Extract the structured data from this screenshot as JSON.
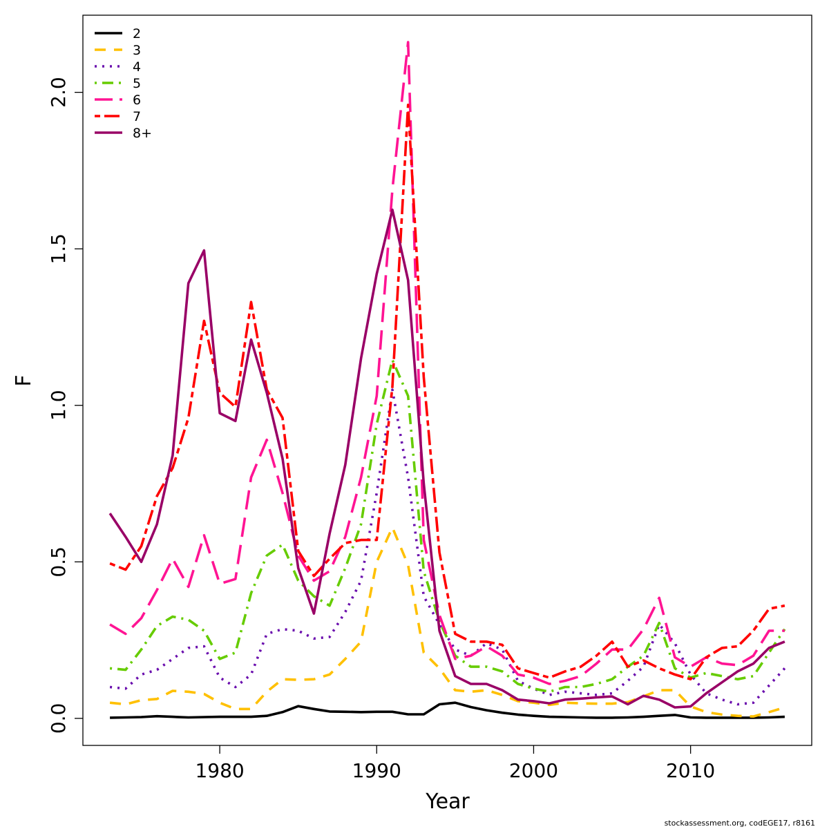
{
  "chart_data": {
    "type": "line",
    "title": "",
    "xlabel": "Year",
    "ylabel": "F",
    "xlim": [
      1970.5,
      1918.5
    ],
    "ylim": [
      -0.08,
      2.24
    ],
    "xticks": [
      1980,
      1990,
      2000,
      2010
    ],
    "yticks": [
      0.0,
      0.5,
      1.0,
      1.5,
      2.0
    ],
    "ytick_labels": [
      "0.0",
      "0.5",
      "1.0",
      "1.5",
      "2.0"
    ],
    "legend_position": "top-left",
    "footer": "stockassessment.org, codEGE17, r8161",
    "x": [
      1973,
      1974,
      1975,
      1976,
      1977,
      1978,
      1979,
      1980,
      1981,
      1982,
      1983,
      1984,
      1985,
      1986,
      1987,
      1988,
      1989,
      1990,
      1991,
      1992,
      1993,
      1994,
      1995,
      1996,
      1997,
      1998,
      1999,
      2000,
      2001,
      2002,
      2003,
      2004,
      2005,
      2006,
      2007,
      2008,
      2009,
      2010,
      2011,
      2012,
      2013,
      2014,
      2015,
      2016
    ],
    "series": [
      {
        "name": "2",
        "color": "#000000",
        "dash": "solid",
        "values": [
          0.002,
          0.003,
          0.004,
          0.007,
          0.005,
          0.003,
          0.004,
          0.005,
          0.005,
          0.005,
          0.008,
          0.02,
          0.039,
          0.03,
          0.022,
          0.021,
          0.02,
          0.021,
          0.021,
          0.013,
          0.013,
          0.045,
          0.05,
          0.036,
          0.026,
          0.018,
          0.012,
          0.008,
          0.005,
          0.004,
          0.003,
          0.002,
          0.002,
          0.003,
          0.005,
          0.008,
          0.011,
          0.003,
          0.002,
          0.002,
          0.002,
          0.002,
          0.003,
          0.005
        ]
      },
      {
        "name": "3",
        "color": "#FFC000",
        "dash": "dashed",
        "values": [
          0.05,
          0.045,
          0.058,
          0.062,
          0.088,
          0.085,
          0.078,
          0.05,
          0.03,
          0.03,
          0.085,
          0.125,
          0.123,
          0.125,
          0.14,
          0.19,
          0.245,
          0.5,
          0.61,
          0.49,
          0.21,
          0.16,
          0.09,
          0.085,
          0.09,
          0.075,
          0.055,
          0.05,
          0.043,
          0.05,
          0.048,
          0.047,
          0.047,
          0.052,
          0.07,
          0.09,
          0.09,
          0.038,
          0.02,
          0.012,
          0.008,
          0.006,
          0.02,
          0.035
        ]
      },
      {
        "name": "4",
        "color": "#6A0DAD",
        "dash": "dotted",
        "values": [
          0.1,
          0.095,
          0.14,
          0.155,
          0.19,
          0.225,
          0.23,
          0.13,
          0.1,
          0.14,
          0.27,
          0.285,
          0.28,
          0.255,
          0.26,
          0.34,
          0.44,
          0.72,
          1.05,
          0.77,
          0.39,
          0.3,
          0.22,
          0.2,
          0.24,
          0.22,
          0.12,
          0.095,
          0.075,
          0.085,
          0.08,
          0.075,
          0.08,
          0.12,
          0.165,
          0.3,
          0.24,
          0.14,
          0.08,
          0.06,
          0.045,
          0.05,
          0.105,
          0.16
        ]
      },
      {
        "name": "5",
        "color": "#66CC00",
        "dash": "dashdot",
        "values": [
          0.16,
          0.155,
          0.22,
          0.295,
          0.325,
          0.315,
          0.28,
          0.19,
          0.21,
          0.4,
          0.52,
          0.555,
          0.44,
          0.39,
          0.36,
          0.48,
          0.62,
          0.94,
          1.145,
          1.03,
          0.47,
          0.31,
          0.2,
          0.165,
          0.165,
          0.15,
          0.11,
          0.095,
          0.085,
          0.1,
          0.1,
          0.11,
          0.125,
          0.165,
          0.2,
          0.305,
          0.16,
          0.13,
          0.145,
          0.135,
          0.125,
          0.135,
          0.21,
          0.285
        ]
      },
      {
        "name": "6",
        "color": "#FF1493",
        "dash": "longdash",
        "values": [
          0.3,
          0.27,
          0.32,
          0.41,
          0.51,
          0.42,
          0.585,
          0.43,
          0.445,
          0.77,
          0.89,
          0.72,
          0.52,
          0.44,
          0.47,
          0.58,
          0.77,
          1.03,
          1.69,
          2.16,
          0.57,
          0.33,
          0.19,
          0.2,
          0.23,
          0.2,
          0.14,
          0.13,
          0.11,
          0.12,
          0.135,
          0.175,
          0.22,
          0.22,
          0.285,
          0.385,
          0.195,
          0.165,
          0.195,
          0.175,
          0.17,
          0.2,
          0.28,
          0.28
        ]
      },
      {
        "name": "7",
        "color": "#FF0000",
        "dash": "twodash",
        "values": [
          0.495,
          0.475,
          0.55,
          0.71,
          0.8,
          0.96,
          1.27,
          1.04,
          0.995,
          1.33,
          1.05,
          0.96,
          0.535,
          0.455,
          0.51,
          0.56,
          0.57,
          0.57,
          1.06,
          1.96,
          1.09,
          0.53,
          0.27,
          0.245,
          0.245,
          0.235,
          0.16,
          0.145,
          0.13,
          0.15,
          0.165,
          0.2,
          0.245,
          0.165,
          0.185,
          0.16,
          0.14,
          0.125,
          0.195,
          0.225,
          0.23,
          0.28,
          0.35,
          0.36
        ]
      },
      {
        "name": "8+",
        "color": "#990066",
        "dash": "solid",
        "values": [
          0.655,
          0.58,
          0.5,
          0.62,
          0.84,
          1.39,
          1.495,
          0.975,
          0.95,
          1.21,
          1.04,
          0.83,
          0.48,
          0.335,
          0.59,
          0.81,
          1.15,
          1.42,
          1.625,
          1.4,
          0.75,
          0.28,
          0.135,
          0.11,
          0.11,
          0.09,
          0.06,
          0.055,
          0.048,
          0.06,
          0.063,
          0.067,
          0.07,
          0.045,
          0.072,
          0.06,
          0.035,
          0.038,
          0.08,
          0.115,
          0.15,
          0.175,
          0.225,
          0.245
        ]
      }
    ]
  }
}
